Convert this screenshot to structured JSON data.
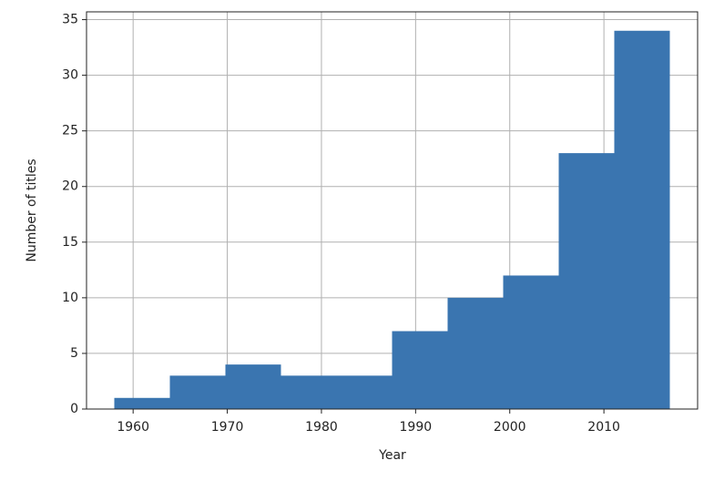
{
  "chart_data": {
    "type": "histogram",
    "xlabel": "Year",
    "ylabel": "Number of titles",
    "bins": [
      1958,
      1963.9,
      1969.8,
      1975.7,
      1981.6,
      1987.5,
      1993.4,
      1999.3,
      2005.2,
      2011.1,
      2017
    ],
    "counts": [
      1,
      3,
      4,
      3,
      3,
      7,
      10,
      12,
      23,
      34
    ],
    "color": "#3a75b0",
    "xlim": [
      1955.05,
      2019.95
    ],
    "xticks": [
      1960,
      1970,
      1980,
      1990,
      2000,
      2010
    ],
    "ylim": [
      0,
      35.7
    ],
    "yticks": [
      0,
      5,
      10,
      15,
      20,
      25,
      30,
      35
    ],
    "grid": true
  }
}
